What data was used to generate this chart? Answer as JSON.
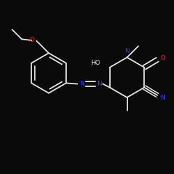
{
  "bg_color": "#0a0a0a",
  "bond_color": "#e8e8e8",
  "N_color": "#3a3aff",
  "O_color": "#ff2020",
  "figsize": [
    2.5,
    2.5
  ],
  "dpi": 100,
  "xlim": [
    0,
    10
  ],
  "ylim": [
    0,
    10
  ],
  "lw": 1.3,
  "fontsize": 6.5
}
